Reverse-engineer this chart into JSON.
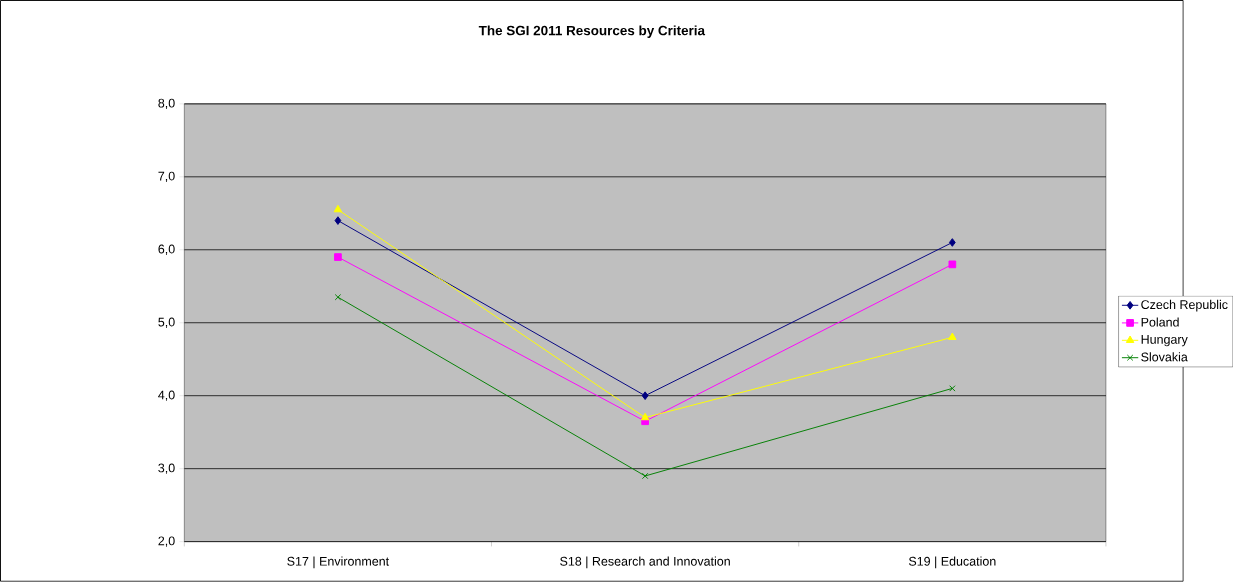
{
  "chart_data": {
    "type": "line",
    "title": "The SGI 2011 Resources by Criteria",
    "categories": [
      "S17 | Environment",
      "S18 | Research and Innovation",
      "S19 | Education"
    ],
    "series": [
      {
        "name": "Czech Republic",
        "color": "#000080",
        "marker": "diamond",
        "values": [
          6.4,
          4.0,
          6.1
        ]
      },
      {
        "name": "Poland",
        "color": "#ff00ff",
        "marker": "square",
        "values": [
          5.9,
          3.65,
          5.8
        ]
      },
      {
        "name": "Hungary",
        "color": "#ffff00",
        "marker": "triangle",
        "values": [
          6.55,
          3.7,
          4.8
        ]
      },
      {
        "name": "Slovakia",
        "color": "#008000",
        "marker": "cross",
        "values": [
          5.35,
          2.9,
          4.1
        ]
      }
    ],
    "ylim": [
      2,
      8
    ],
    "yticks": [
      {
        "value": 2,
        "label": "2,0"
      },
      {
        "value": 3,
        "label": "3,0"
      },
      {
        "value": 4,
        "label": "4,0"
      },
      {
        "value": 5,
        "label": "5,0"
      },
      {
        "value": 6,
        "label": "6,0"
      },
      {
        "value": 7,
        "label": "7,0"
      },
      {
        "value": 8,
        "label": "8,0"
      }
    ],
    "grid": "y",
    "legend": "right"
  }
}
